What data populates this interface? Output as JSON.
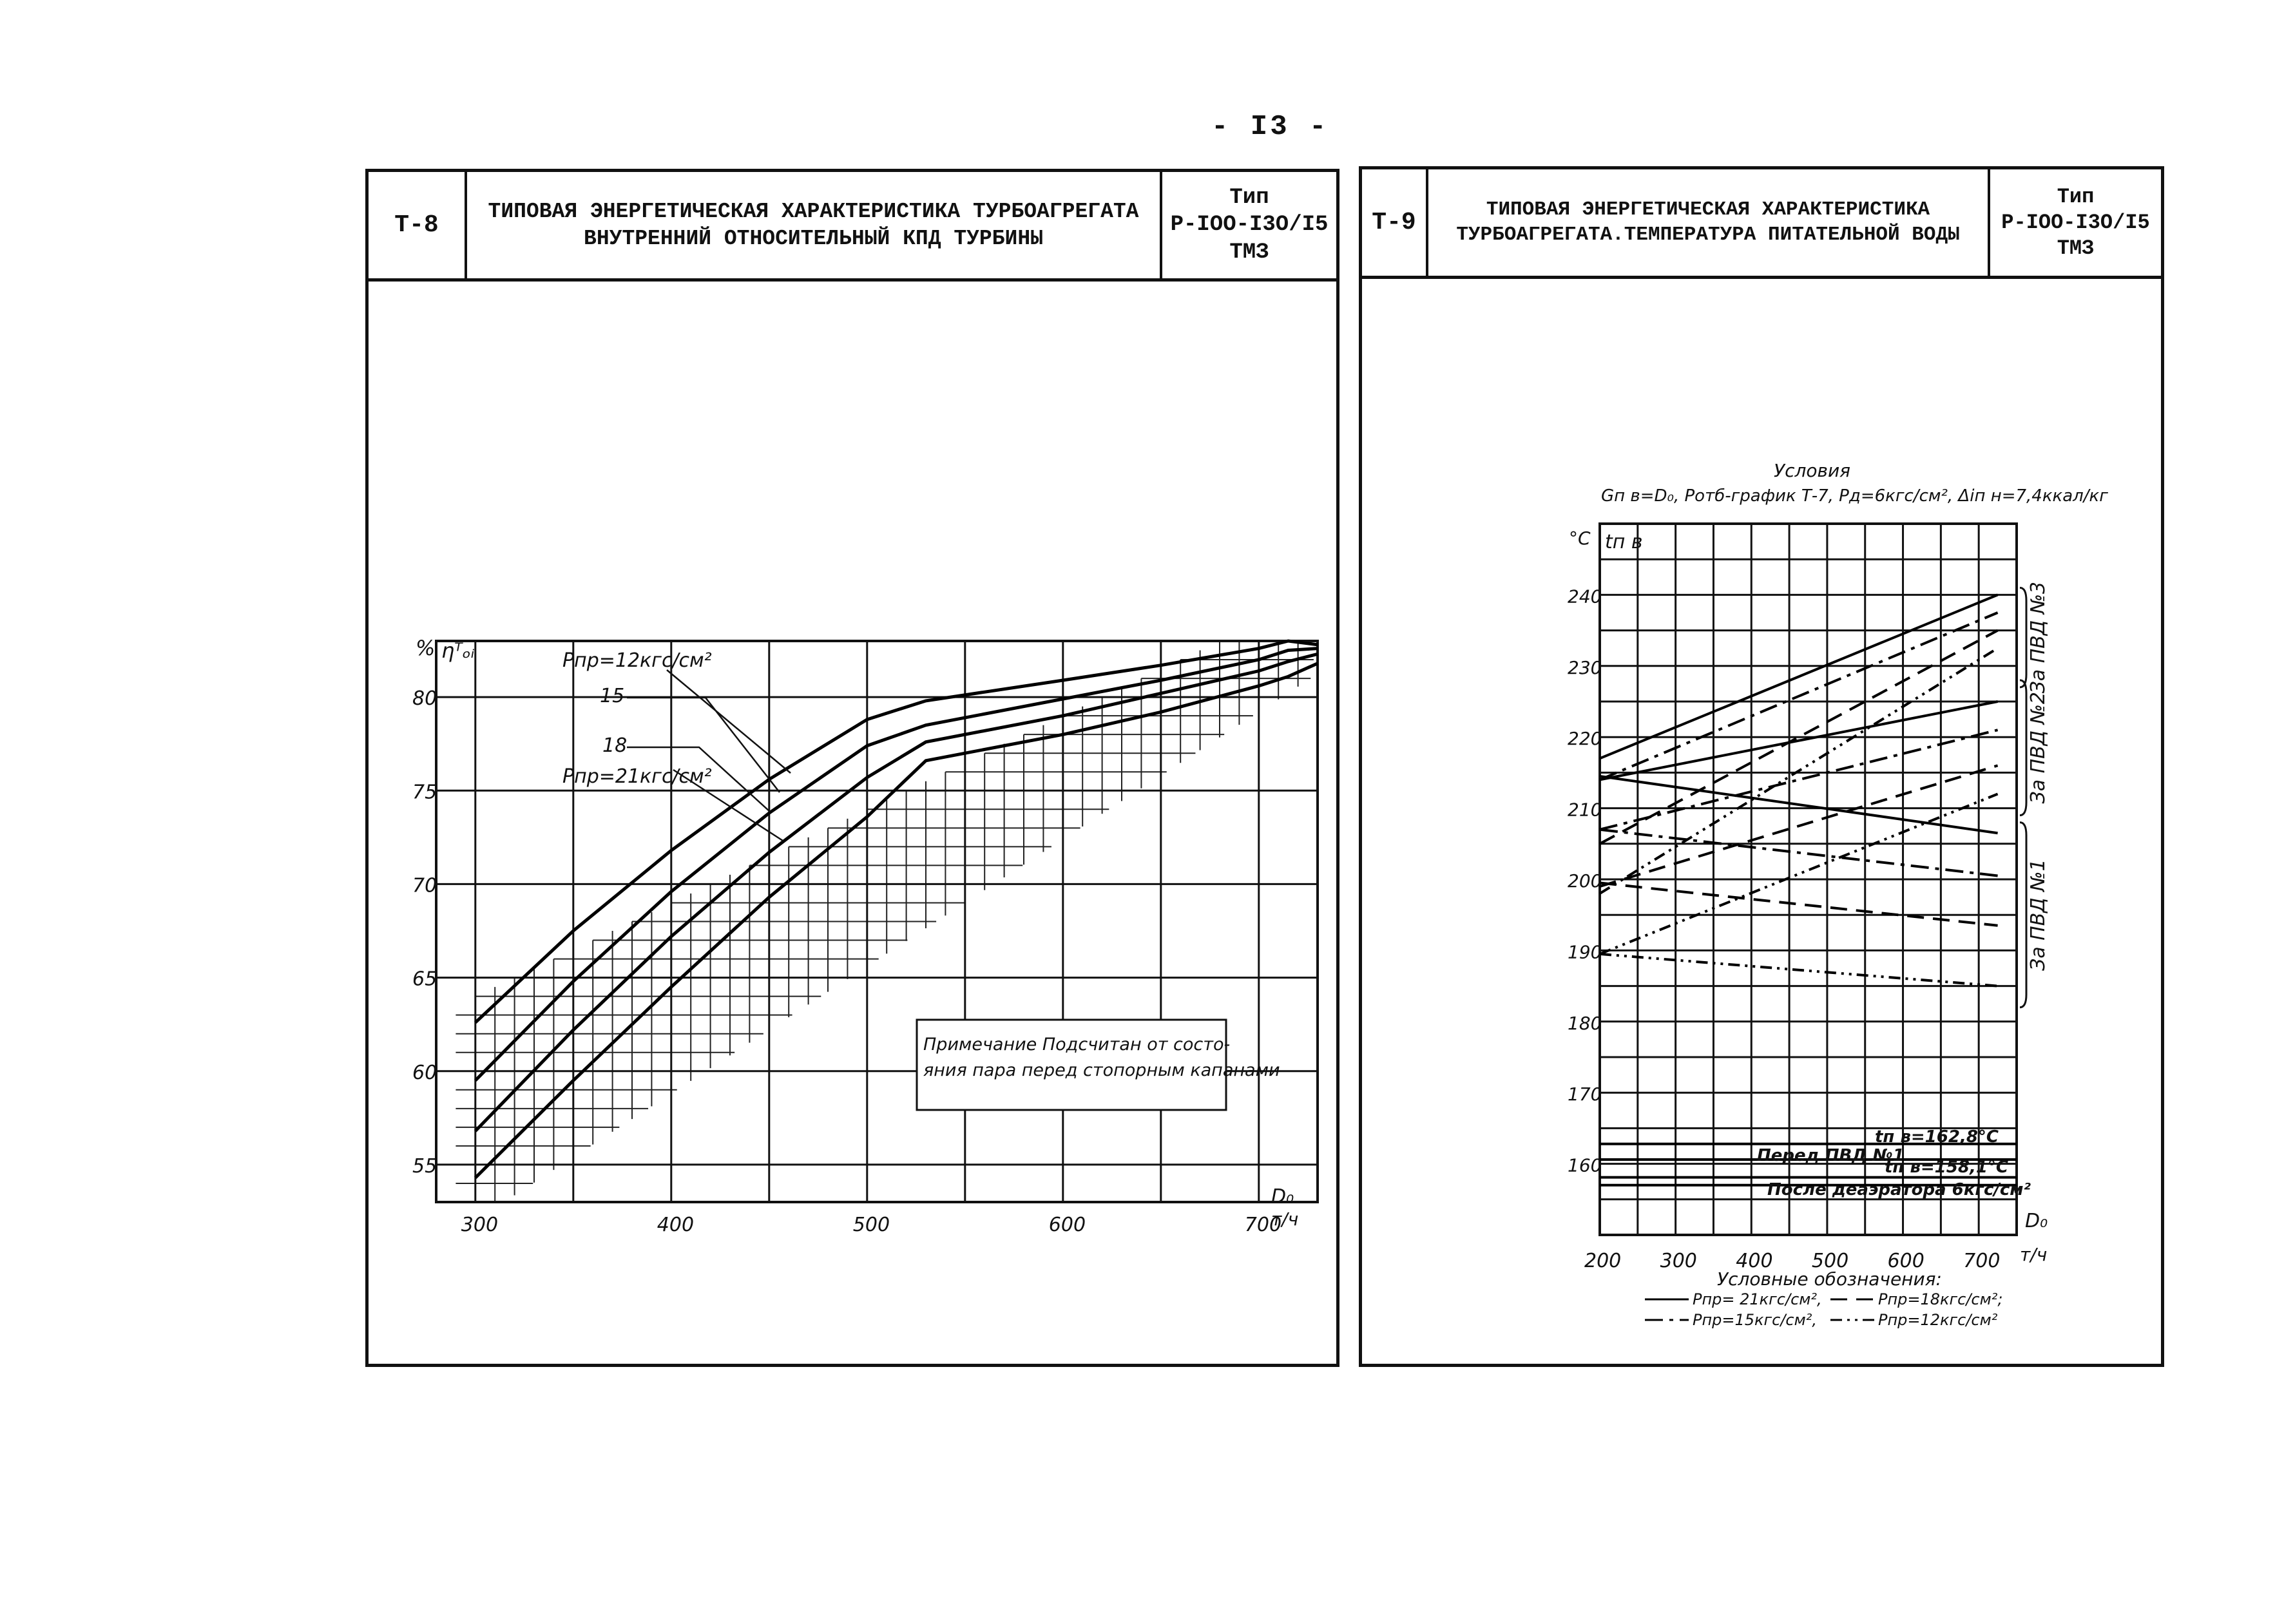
{
  "page_number": "- I3 -",
  "left": {
    "header": {
      "code": "Т-8",
      "title_line1": "ТИПОВАЯ ЭНЕРГЕТИЧЕСКАЯ ХАРАКТЕРИСТИКА ТУРБОАГРЕГАТА",
      "title_line2": "ВНУТРЕННИЙ ОТНОСИТЕЛЬНЫЙ КПД ТУРБИНЫ",
      "type_line1": "Тип",
      "type_line2": "Р-IОО-I3О/I5",
      "type_line3": "ТМЗ"
    }
  },
  "right": {
    "header": {
      "code": "Т-9",
      "title_line1": "ТИПОВАЯ ЭНЕРГЕТИЧЕСКАЯ ХАРАКТЕРИСТИКА",
      "title_line2": "ТУРБОАГРЕГАТА.ТЕМПЕРАТУРА ПИТАТЕЛЬНОЙ ВОДЫ",
      "type_line1": "Тип",
      "type_line2": "Р-IОО-I3О/I5",
      "type_line3": "ТМЗ"
    }
  },
  "chart_data": [
    {
      "type": "line",
      "ylabel": "ηᵀₒᵢ",
      "yunit": "%",
      "xlabel": "D₀",
      "xunit": "т/ч",
      "xlim": [
        280,
        730
      ],
      "ylim": [
        53,
        83
      ],
      "xticks": [
        300,
        400,
        500,
        600,
        700
      ],
      "yticks": [
        55,
        60,
        65,
        70,
        75,
        80
      ],
      "grid": true,
      "series": [
        {
          "name": "Pпр=12кгс/см²",
          "x": [
            300,
            350,
            400,
            450,
            500,
            530,
            600,
            650,
            700,
            715,
            730
          ],
          "y": [
            62.6,
            67.5,
            71.8,
            75.6,
            78.8,
            79.8,
            80.9,
            81.7,
            82.6,
            83.0,
            82.8
          ]
        },
        {
          "name": "15",
          "x": [
            300,
            350,
            400,
            450,
            500,
            530,
            600,
            650,
            700,
            715,
            730
          ],
          "y": [
            59.5,
            64.8,
            69.6,
            73.8,
            77.4,
            78.5,
            79.9,
            80.9,
            82.0,
            82.5,
            82.6
          ]
        },
        {
          "name": "18",
          "x": [
            300,
            350,
            400,
            450,
            500,
            530,
            600,
            650,
            700,
            715,
            730
          ],
          "y": [
            56.8,
            62.2,
            67.2,
            71.7,
            75.7,
            77.6,
            79.0,
            80.2,
            81.4,
            81.9,
            82.3
          ]
        },
        {
          "name": "Pпр=21кгс/см²",
          "x": [
            300,
            350,
            400,
            450,
            500,
            530,
            600,
            650,
            700,
            715,
            730
          ],
          "y": [
            54.3,
            59.5,
            64.5,
            69.3,
            73.6,
            76.6,
            78.0,
            79.2,
            80.6,
            81.1,
            81.8
          ]
        }
      ],
      "note_line1": "Примечание  Подсчитан от состо-",
      "note_line2": "яния пара перед стопорным капанами"
    },
    {
      "type": "line",
      "conditions_title": "Условия",
      "conditions": "Gп в=D₀,  Pотб-график Т-7,  Pд=6кгс/см²,  Δiп н=7,4ккал/кг",
      "ylabel": "tп в",
      "yunit": "°С",
      "xlabel": "D₀",
      "xunit": "т/ч",
      "xlim": [
        200,
        750
      ],
      "ylim": [
        150,
        250
      ],
      "xticks": [
        200,
        300,
        400,
        500,
        600,
        700
      ],
      "yticks": [
        160,
        170,
        180,
        190,
        200,
        210,
        220,
        230,
        240
      ],
      "grid": true,
      "groups": [
        {
          "label": "За ПВД №3",
          "series": [
            {
              "style": "solid",
              "x": [
                200,
                725
              ],
              "y": [
                217,
                240
              ]
            },
            {
              "style": "dashdot",
              "x": [
                200,
                725
              ],
              "y": [
                214,
                237.5
              ]
            },
            {
              "style": "dashed",
              "x": [
                200,
                725
              ],
              "y": [
                205,
                235
              ]
            },
            {
              "style": "dashdot2",
              "x": [
                200,
                725
              ],
              "y": [
                198,
                232.5
              ]
            }
          ]
        },
        {
          "label": "За ПВД №2",
          "series": [
            {
              "style": "solid",
              "x": [
                200,
                725
              ],
              "y": [
                214,
                225
              ]
            },
            {
              "style": "dashdot",
              "x": [
                200,
                725
              ],
              "y": [
                207,
                221
              ]
            },
            {
              "style": "dashed",
              "x": [
                200,
                725
              ],
              "y": [
                199,
                216
              ]
            },
            {
              "style": "dashdot2",
              "x": [
                200,
                725
              ],
              "y": [
                189.5,
                212
              ]
            }
          ]
        },
        {
          "label": "За ПВД №1",
          "series": [
            {
              "style": "solid",
              "x": [
                200,
                725
              ],
              "y": [
                214.5,
                206.5
              ]
            },
            {
              "style": "dashdot",
              "x": [
                200,
                725
              ],
              "y": [
                207,
                200.5
              ]
            },
            {
              "style": "dashed",
              "x": [
                200,
                725
              ],
              "y": [
                199.5,
                193.5
              ]
            },
            {
              "style": "dashdot2",
              "x": [
                200,
                725
              ],
              "y": [
                189.5,
                185
              ]
            }
          ]
        }
      ],
      "reference_lines": [
        {
          "label": "tп в=162,8°С",
          "y": 162.8
        },
        {
          "label": "tп в=158,1°С",
          "y": 158.1
        },
        {
          "label": "Перед ПВД №1",
          "y": 160.6
        },
        {
          "label": "После деаэратора 6кгс/см²",
          "y": 157.0
        }
      ],
      "legend_title": "Условные обозначения:",
      "legend": [
        {
          "style": "solid",
          "name": "Pпр= 21кгс/см²,"
        },
        {
          "style": "dashed",
          "name": "Pпр=18кгс/см²;"
        },
        {
          "style": "dashdot",
          "name": "Pпр=15кгс/см²,"
        },
        {
          "style": "dashdot2",
          "name": "Pпр=12кгс/см²"
        }
      ]
    }
  ]
}
